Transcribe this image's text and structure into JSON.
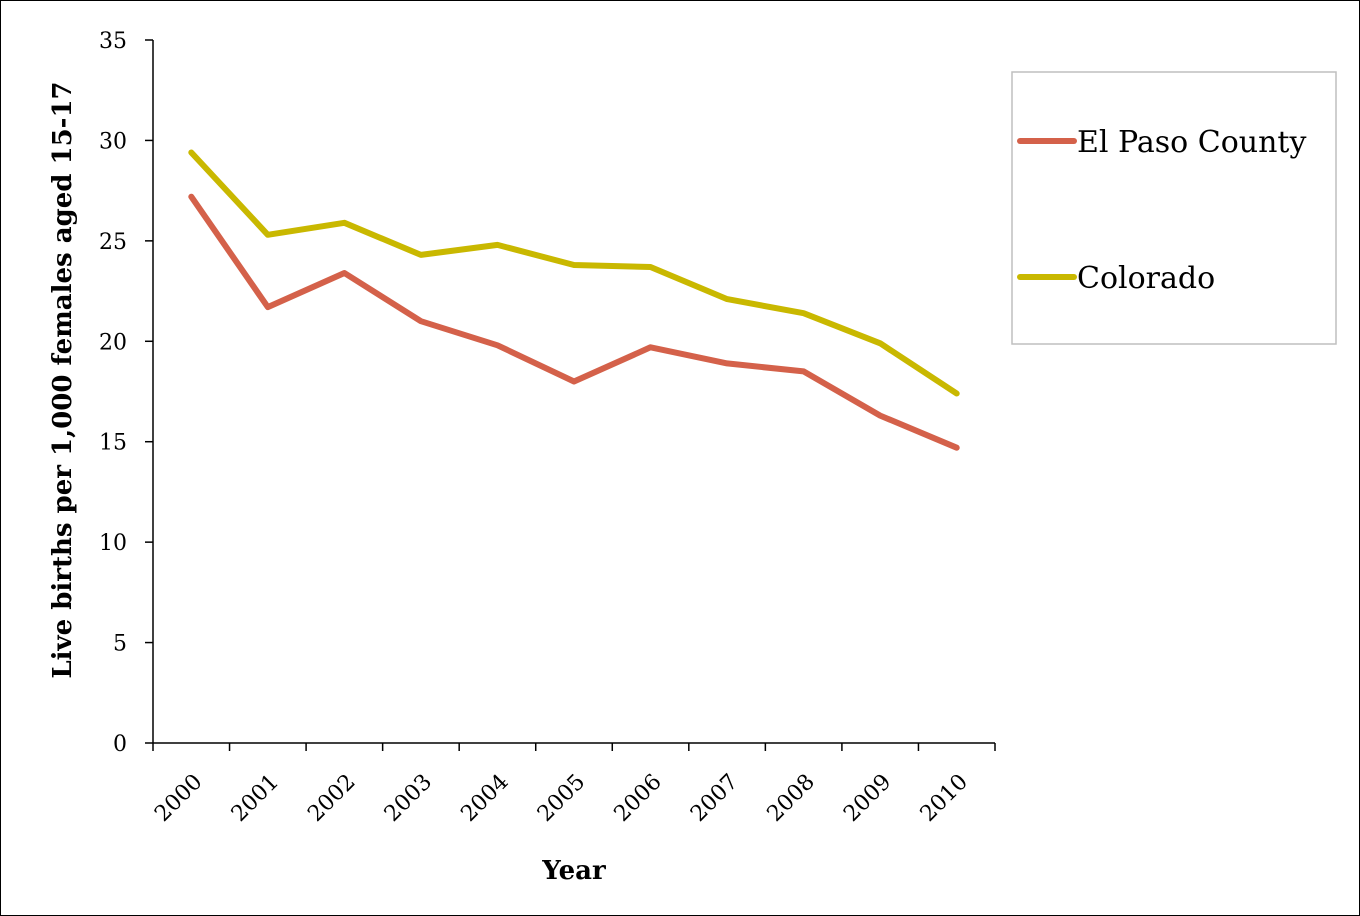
{
  "chart_data": {
    "type": "line",
    "title": "",
    "xlabel": "Year",
    "ylabel": "Live births per 1,000 females aged 15-17",
    "categories": [
      "2000",
      "2001",
      "2002",
      "2003",
      "2004",
      "2005",
      "2006",
      "2007",
      "2008",
      "2009",
      "2010"
    ],
    "yticks": [
      "0",
      "5",
      "10",
      "15",
      "20",
      "25",
      "30",
      "35"
    ],
    "ylim": [
      0,
      35
    ],
    "grid": false,
    "legend": "right",
    "series": [
      {
        "name": "El Paso County",
        "color": "#d4614a",
        "values": [
          27.2,
          21.7,
          23.4,
          21.0,
          19.8,
          18.0,
          19.7,
          18.9,
          18.5,
          16.3,
          14.7
        ]
      },
      {
        "name": "Colorado",
        "color": "#c9b800",
        "values": [
          29.4,
          25.3,
          25.9,
          24.3,
          24.8,
          23.8,
          23.7,
          22.1,
          21.4,
          19.9,
          17.4
        ]
      }
    ]
  }
}
